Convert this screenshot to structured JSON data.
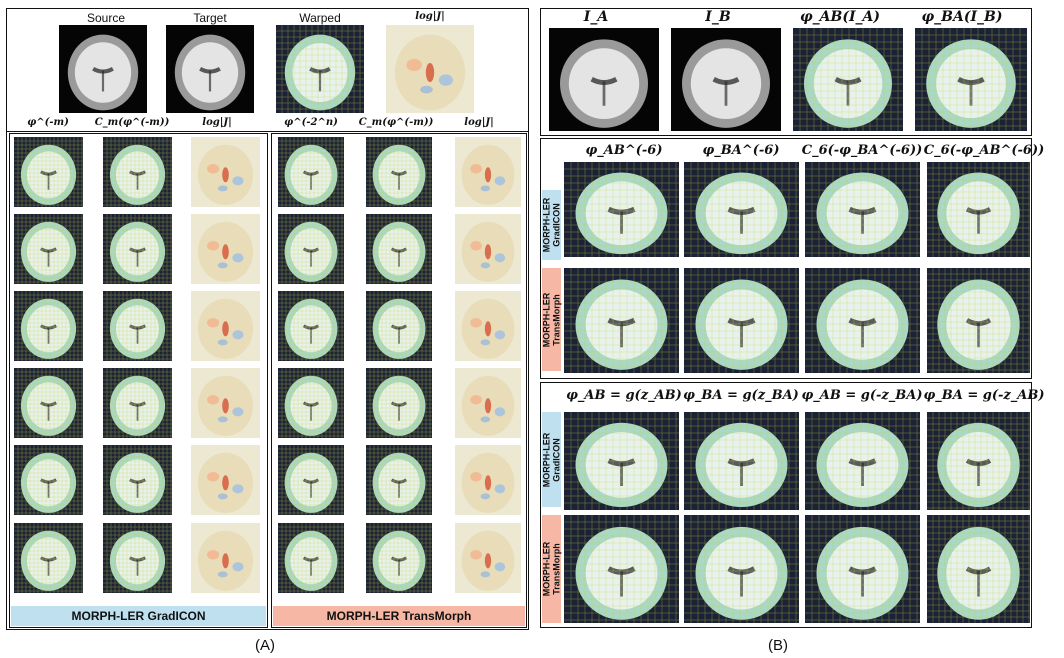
{
  "panel_a": {
    "top_headers": [
      "Source",
      "Target",
      "Warped",
      "log|J|"
    ],
    "left_headers": [
      "φ^(-m)",
      "C_m(φ^(-m))",
      "log|J|"
    ],
    "right_headers": [
      "φ^(-2^n)",
      "C_m(φ^(-m))",
      "log|J|"
    ],
    "left_banner": "MORPH-LER GradICON",
    "right_banner": "MORPH-LER TransMorph",
    "caption": "(A)"
  },
  "panel_b": {
    "top_headers": [
      "I_A",
      "I_B",
      "φ_AB(I_A)",
      "φ_BA(I_B)"
    ],
    "mid_headers": [
      "φ_AB^(-6)",
      "φ_BA^(-6)",
      "C_6(-φ_BA^(-6))",
      "C_6(-φ_AB^(-6))"
    ],
    "bottom_headers": [
      "φ_AB = g(z_AB)",
      "φ_BA = g(z_BA)",
      "φ_AB = g(-z_BA)",
      "φ_BA = g(-z_AB)"
    ],
    "row_labels": [
      "MORPH-LER\nGradICON",
      "MORPH-LER\nTransMorph",
      "MORPH-LER\nGradICON",
      "MORPH-LER\nTransMorph"
    ],
    "caption": "(B)"
  },
  "colors": {
    "gradicon_banner": "#bfe0ef",
    "transmorph_banner": "#f6b7a5",
    "grid_lines": "#c9d23a",
    "brain_tint": "#a9d8c6"
  }
}
